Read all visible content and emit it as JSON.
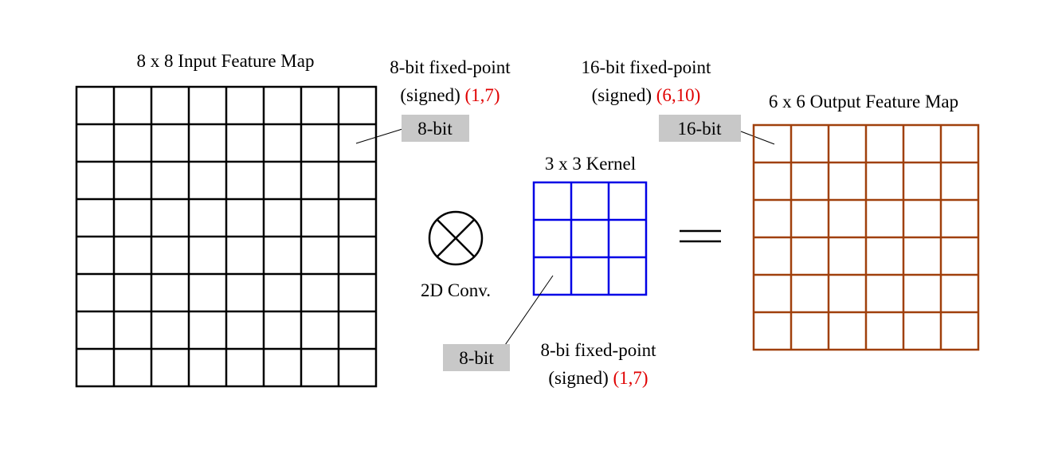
{
  "input_map": {
    "title": "8 x 8 Input Feature Map",
    "rows": 8,
    "cols": 8,
    "color": "#000000",
    "format_line1": "8-bit fixed-point",
    "format_line2_prefix": "(signed) ",
    "format_line2_value": "(1,7)",
    "bit_tag": "8-bit"
  },
  "kernel": {
    "title": "3 x 3 Kernel",
    "rows": 3,
    "cols": 3,
    "color": "#0000e6",
    "format_line1": "8-bi fixed-point",
    "format_line2_prefix": "(signed) ",
    "format_line2_value": "(1,7)",
    "bit_tag": "8-bit"
  },
  "operator": {
    "icon": "circled-times-icon",
    "label": "2D Conv."
  },
  "output_map": {
    "title": "6 x 6 Output Feature Map",
    "rows": 6,
    "cols": 6,
    "color": "#a0400c",
    "format_line1": "16-bit fixed-point",
    "format_line2_prefix": "(signed) ",
    "format_line2_value": "(6,10)",
    "bit_tag": "16-bit"
  },
  "colors": {
    "highlight": "#e00000",
    "tag_background": "#c8c8c8"
  }
}
